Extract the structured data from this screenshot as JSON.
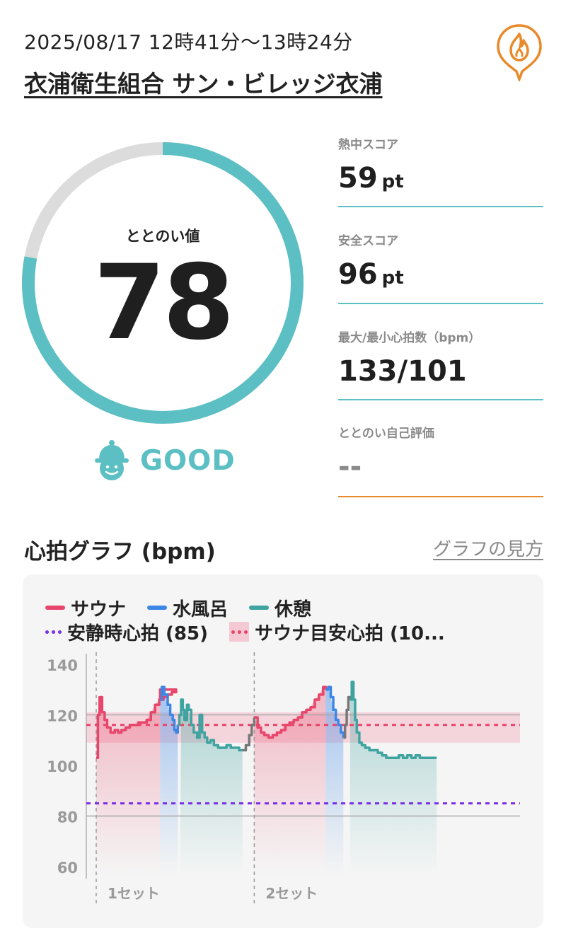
{
  "header": {
    "datetime": "2025/08/17 12時41分〜13時24分",
    "venue": "衣浦衛生組合 サン・ビレッジ衣浦"
  },
  "gauge": {
    "label": "ととのい値",
    "value": "78",
    "fraction": 0.78,
    "track_color": "#dcdcdc",
    "fill_color": "#5bbfc4"
  },
  "rating": {
    "label": "GOOD",
    "icon": "helmet-face-icon",
    "color": "#5bbfc4"
  },
  "stats": [
    {
      "label": "熱中スコア",
      "value": "59",
      "unit": "pt"
    },
    {
      "label": "安全スコア",
      "value": "96",
      "unit": "pt"
    },
    {
      "label": "最大/最小心拍数（bpm）",
      "value": "133/101",
      "unit": ""
    },
    {
      "label": "ととのい自己評価",
      "value": "--",
      "unit": ""
    }
  ],
  "graph": {
    "title": "心拍グラフ (bpm)",
    "help_link": "グラフの見方"
  },
  "legend": {
    "sauna": "サウナ",
    "cold_bath": "水風呂",
    "rest": "休憩",
    "resting_hr": "安静時心拍 (85)",
    "sauna_target": "サウナ目安心拍 (10..."
  },
  "colors": {
    "sauna": "#e8456a",
    "cold_bath": "#3b86e6",
    "rest": "#3fa3a0",
    "resting_hr": "#7a2ee6",
    "target_band": "#f4c9d3",
    "self_eval_line": "#e8892a",
    "gap": "#777777"
  },
  "chart_data": {
    "type": "line",
    "ylim": [
      60,
      140
    ],
    "yticks": [
      140,
      120,
      100,
      80,
      60
    ],
    "resting_hr": 85,
    "target_band": [
      109,
      121
    ],
    "target_line": 116,
    "set_labels": [
      "1セット",
      "2セット"
    ],
    "set_starts_min": [
      0,
      18.8
    ],
    "duration_min": 42,
    "segments": [
      {
        "phase": "sauna",
        "points": [
          [
            0,
            103
          ],
          [
            0.2,
            120
          ],
          [
            0.4,
            127
          ],
          [
            0.7,
            121
          ],
          [
            1.0,
            118
          ],
          [
            1.3,
            115
          ],
          [
            1.7,
            113
          ],
          [
            2.2,
            114
          ],
          [
            2.6,
            113
          ],
          [
            3.0,
            114
          ],
          [
            3.5,
            115
          ],
          [
            4.0,
            116
          ],
          [
            4.5,
            116
          ],
          [
            5.0,
            117
          ],
          [
            5.5,
            117
          ],
          [
            6.0,
            118
          ],
          [
            6.5,
            121
          ],
          [
            7.0,
            124
          ],
          [
            7.5,
            126
          ],
          [
            8.0,
            127
          ],
          [
            8.5,
            128
          ],
          [
            9.0,
            129
          ],
          [
            9.5,
            130
          ],
          [
            7.6,
            126
          ]
        ]
      },
      {
        "phase": "cold_bath",
        "points": [
          [
            7.6,
            126
          ],
          [
            7.8,
            131
          ],
          [
            8.1,
            128
          ],
          [
            8.5,
            124
          ],
          [
            8.8,
            120
          ],
          [
            9.1,
            118
          ],
          [
            9.3,
            114
          ],
          [
            9.5,
            113
          ],
          [
            9.7,
            116
          ]
        ]
      },
      {
        "phase": "rest",
        "points": [
          [
            9.7,
            116
          ],
          [
            9.9,
            120
          ],
          [
            10.1,
            126
          ],
          [
            10.3,
            122
          ],
          [
            10.5,
            118
          ],
          [
            10.8,
            124
          ],
          [
            11.0,
            122
          ],
          [
            11.3,
            116
          ],
          [
            11.6,
            113
          ],
          [
            12.0,
            111
          ],
          [
            12.3,
            120
          ],
          [
            12.6,
            113
          ],
          [
            12.9,
            111
          ],
          [
            13.2,
            109
          ],
          [
            13.6,
            110
          ],
          [
            14.0,
            108
          ],
          [
            14.5,
            107
          ],
          [
            15.0,
            107
          ],
          [
            15.5,
            108
          ],
          [
            16.0,
            107
          ],
          [
            16.5,
            107
          ],
          [
            17.0,
            106
          ],
          [
            17.4,
            106
          ]
        ]
      },
      {
        "phase": "gap",
        "points": [
          [
            17.4,
            106
          ],
          [
            17.8,
            108
          ],
          [
            18.2,
            112
          ],
          [
            18.5,
            116
          ],
          [
            18.8,
            119
          ]
        ]
      },
      {
        "phase": "sauna",
        "points": [
          [
            18.8,
            119
          ],
          [
            19.2,
            115
          ],
          [
            19.6,
            113
          ],
          [
            20.0,
            112
          ],
          [
            20.5,
            111
          ],
          [
            21.0,
            112
          ],
          [
            21.5,
            113
          ],
          [
            22.0,
            114
          ],
          [
            22.5,
            116
          ],
          [
            23.0,
            117
          ],
          [
            23.5,
            118
          ],
          [
            24.0,
            119
          ],
          [
            24.5,
            121
          ],
          [
            25.0,
            122
          ],
          [
            25.5,
            123
          ],
          [
            26.0,
            126
          ],
          [
            26.5,
            128
          ],
          [
            27.0,
            131
          ],
          [
            27.3,
            130
          ]
        ]
      },
      {
        "phase": "cold_bath",
        "points": [
          [
            27.3,
            130
          ],
          [
            27.6,
            131
          ],
          [
            27.9,
            127
          ],
          [
            28.2,
            122
          ],
          [
            28.5,
            118
          ],
          [
            28.8,
            116
          ],
          [
            29.1,
            113
          ],
          [
            29.4,
            111
          ]
        ]
      },
      {
        "phase": "gap",
        "points": [
          [
            29.4,
            111
          ],
          [
            29.6,
            116
          ],
          [
            29.8,
            122
          ],
          [
            30.0,
            127
          ],
          [
            30.2,
            126
          ]
        ]
      },
      {
        "phase": "rest",
        "points": [
          [
            30.2,
            126
          ],
          [
            30.4,
            133
          ],
          [
            30.6,
            126
          ],
          [
            30.8,
            118
          ],
          [
            31.0,
            113
          ],
          [
            31.3,
            109
          ],
          [
            31.6,
            108
          ],
          [
            32.0,
            107
          ],
          [
            32.5,
            106
          ],
          [
            33.0,
            106
          ],
          [
            33.5,
            105
          ],
          [
            34.0,
            104
          ],
          [
            34.5,
            103
          ],
          [
            35.0,
            103
          ],
          [
            35.5,
            103
          ],
          [
            36.0,
            104
          ],
          [
            36.5,
            103
          ],
          [
            37.0,
            104
          ],
          [
            37.5,
            103
          ],
          [
            38.0,
            104
          ],
          [
            38.5,
            103
          ],
          [
            39.0,
            103
          ],
          [
            39.5,
            103
          ],
          [
            40.0,
            103
          ],
          [
            40.5,
            103
          ]
        ]
      }
    ],
    "bands": [
      {
        "phase": "sauna",
        "from": 0,
        "to": 7.6
      },
      {
        "phase": "cold_bath",
        "from": 7.6,
        "to": 9.7
      },
      {
        "phase": "rest",
        "from": 10.0,
        "to": 17.4
      },
      {
        "phase": "sauna",
        "from": 18.8,
        "to": 27.3
      },
      {
        "phase": "cold_bath",
        "from": 27.3,
        "to": 29.4
      },
      {
        "phase": "rest",
        "from": 30.2,
        "to": 40.5
      }
    ]
  }
}
